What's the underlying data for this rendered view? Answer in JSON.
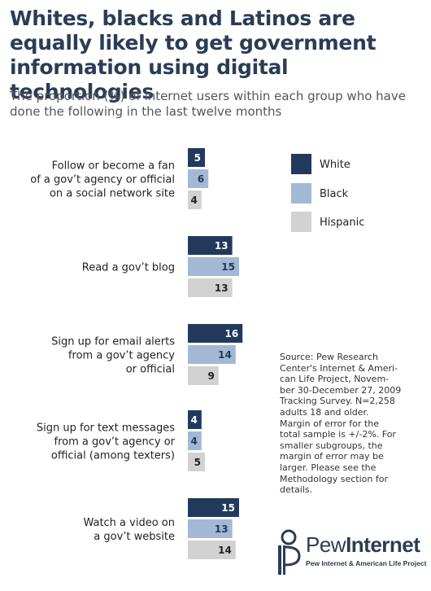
{
  "chart_data": {
    "type": "bar",
    "orientation": "horizontal",
    "title": "Whites, blacks and Latinos are equally likely to get government information using digital technologies",
    "subtitle": "The proportion (%) of internet users within each group who have done the following in the last twelve months",
    "categories": [
      "Follow or become a fan of a gov’t agency or official on a social network site",
      "Read a gov’t blog",
      "Sign up for email alerts from a gov’t agency or official",
      "Sign up for text messages from a gov’t agency or official (among texters)",
      "Watch a video on a gov’t website"
    ],
    "category_lines": [
      [
        "Follow or become a fan",
        "of a gov’t agency or official",
        "on a social network site"
      ],
      [
        "Read a gov’t blog"
      ],
      [
        "Sign up for email alerts",
        "from a gov’t agency",
        "or official"
      ],
      [
        "Sign up for text messages",
        "from a gov’t agency or",
        "official (among texters)"
      ],
      [
        "Watch a video on",
        "a gov’t website"
      ]
    ],
    "series": [
      {
        "name": "White",
        "color": "#22395c",
        "label_color": "#ffffff",
        "values": [
          5,
          13,
          16,
          4,
          15
        ]
      },
      {
        "name": "Black",
        "color": "#a3b8d4",
        "label_color": "#22395c",
        "values": [
          6,
          15,
          14,
          4,
          13
        ]
      },
      {
        "name": "Hispanic",
        "color": "#d2d2d2",
        "label_color": "#222222",
        "values": [
          4,
          13,
          9,
          5,
          14
        ]
      }
    ],
    "legend_position": "top-right",
    "grid": false
  },
  "source_note": "Source: Pew Research Center's Internet & American Life Project, November 30-December 27, 2009 Tracking Survey. N=2,258 adults 18 and older. Margin of error for the total sample is +/-2%. For smaller subgroups, the margin of error may be larger. Please see the Methodology section for details.",
  "source_lines": [
    "Source: Pew Research",
    "Center's Internet & Ameri-",
    "can Life Project, Novem-",
    "ber 30-December 27, 2009",
    "Tracking Survey. N=2,258",
    "adults 18 and older.",
    "Margin of error for the",
    "total sample is +/-2%. For",
    "smaller subgroups, the",
    "margin of error may be",
    "larger. Please see the",
    "Methodology section for",
    "details."
  ],
  "logo": {
    "word_part1": "Pew",
    "word_part2": "Internet",
    "tagline": "Pew Internet & American Life Project",
    "color": "#2b3d55"
  }
}
